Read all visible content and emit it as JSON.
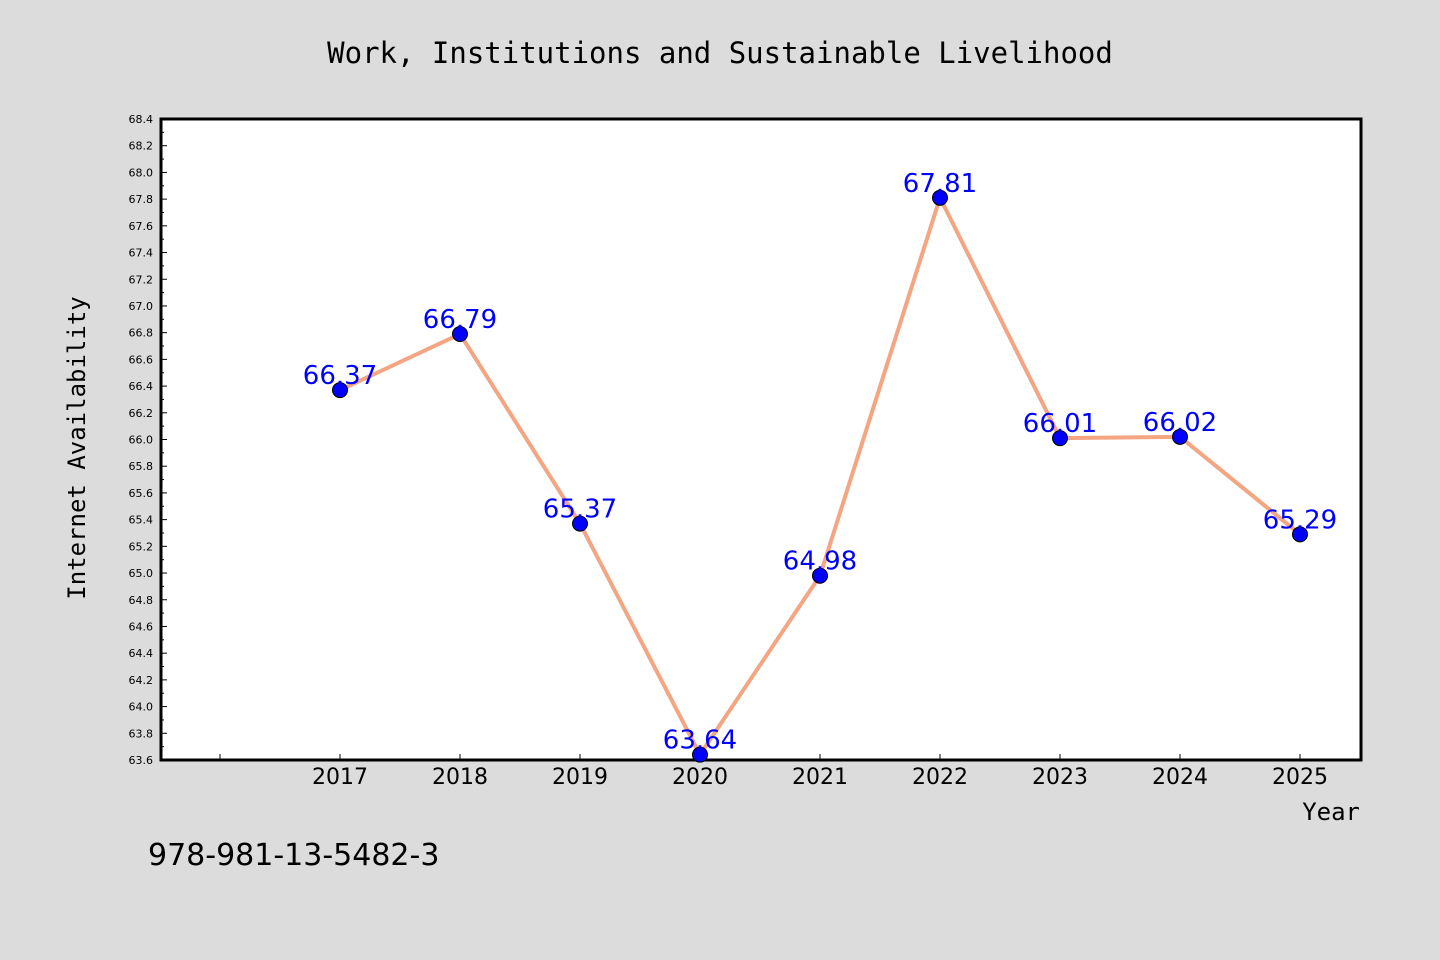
{
  "chart_data": {
    "type": "line",
    "title": "Work, Institutions and Sustainable Livelihood",
    "xlabel": "Year",
    "ylabel": "Internet Availability",
    "categories": [
      "2017",
      "2018",
      "2019",
      "2020",
      "2021",
      "2022",
      "2023",
      "2024",
      "2025"
    ],
    "series": [
      {
        "values": [
          66.37,
          66.79,
          65.37,
          63.64,
          64.98,
          67.81,
          66.01,
          66.02,
          65.29
        ],
        "data_labels": [
          "66.37",
          "66.79",
          "65.37",
          "63.64",
          "64.98",
          "67.81",
          "66.01",
          "66.02",
          "65.29"
        ],
        "line_color": "#f4a582",
        "marker_color": "#0000ff",
        "label_color": "#0000ff"
      }
    ],
    "ylim": [
      63.6,
      68.4
    ],
    "yticks": [
      "63.6",
      "63.8",
      "64.0",
      "64.2",
      "64.4",
      "64.6",
      "64.8",
      "65.0",
      "65.2",
      "65.4",
      "65.6",
      "65.8",
      "66.0",
      "66.2",
      "66.4",
      "66.6",
      "66.8",
      "67.0",
      "67.2",
      "67.4",
      "67.6",
      "67.8",
      "68.0",
      "68.2",
      "68.4"
    ],
    "grid": false,
    "legend": "none",
    "plot_background": "#ffffff",
    "page_background": "#dcdcdc"
  },
  "footer": {
    "isbn": "978-981-13-5482-3"
  }
}
